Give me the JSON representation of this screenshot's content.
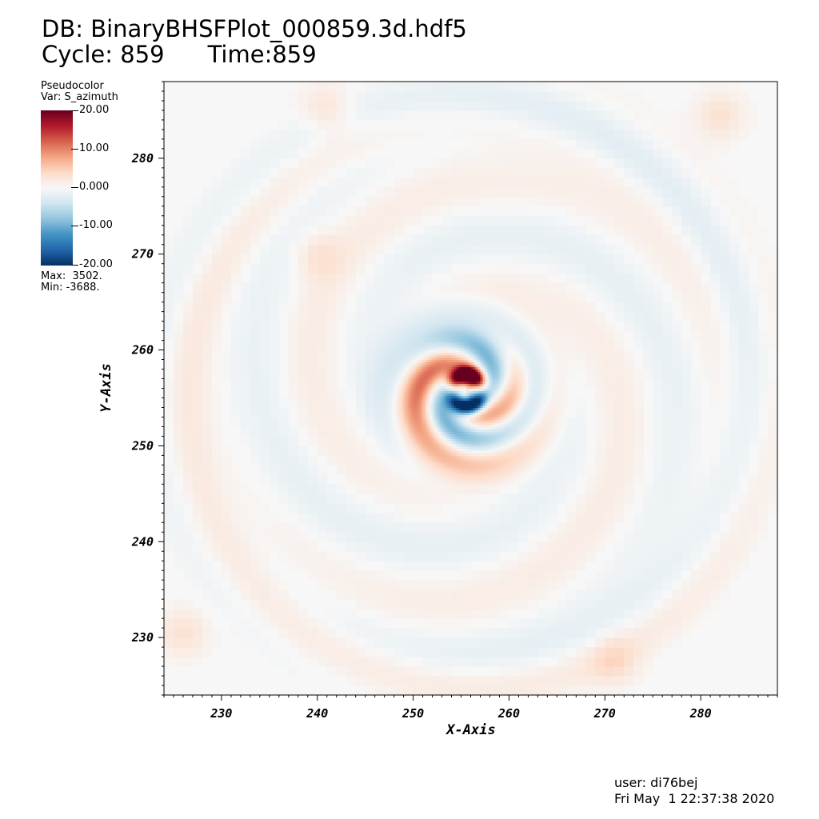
{
  "header": {
    "db_title": "DB: BinaryBHSFPlot_000859.3d.hdf5",
    "cycle_label": "Cycle: 859",
    "time_label": "Time:859"
  },
  "legend": {
    "plot_type": "Pseudocolor",
    "var_label": "Var: S_azimuth",
    "ticks": [
      "20.00",
      "10.00",
      "0.000",
      "-10.00",
      "-20.00"
    ],
    "max_label": "Max:  3502.",
    "min_label": "Min: -3688.",
    "colormap": [
      "#053061",
      "#2166ac",
      "#4393c3",
      "#92c5de",
      "#d1e5f0",
      "#f7f7f7",
      "#fddbc7",
      "#f4a582",
      "#d6604d",
      "#b2182b",
      "#67001f"
    ]
  },
  "footer": {
    "user": "user: di76bej",
    "timestamp": "Fri May  1 22:37:38 2020"
  },
  "chart_data": {
    "type": "heatmap",
    "title": "S_azimuth",
    "xlabel": "X-Axis",
    "ylabel": "Y-Axis",
    "xlim": [
      224,
      288
    ],
    "ylim": [
      224,
      288
    ],
    "xticks": [
      230,
      240,
      250,
      260,
      270,
      280
    ],
    "yticks": [
      230,
      240,
      250,
      260,
      270,
      280
    ],
    "color_range": [
      -20,
      20
    ],
    "data_max": 3502,
    "data_min": -3688,
    "center": [
      255.6,
      255.8
    ],
    "features": [
      {
        "name": "core-positive-lobe",
        "x": 255.6,
        "y": 257.5,
        "value": 20
      },
      {
        "name": "core-negative-lobe",
        "x": 256.3,
        "y": 254.3,
        "value": -20
      },
      {
        "name": "inner-ring-positive",
        "x": 254.5,
        "y": 258.5,
        "value": 8
      },
      {
        "name": "inner-ring-negative",
        "x": 257.5,
        "y": 256.0,
        "value": -8
      },
      {
        "name": "spiral-arm-positive-nw",
        "x": 251.5,
        "y": 261.0,
        "value": 6
      },
      {
        "name": "spiral-arm-negative-ne",
        "x": 259.0,
        "y": 262.0,
        "value": -4
      },
      {
        "name": "spiral-arm-positive-e",
        "x": 259.5,
        "y": 258.5,
        "value": 5
      },
      {
        "name": "spiral-arm-negative-s",
        "x": 252.5,
        "y": 248.5,
        "value": -5
      },
      {
        "name": "spiral-arm-positive-se",
        "x": 258.5,
        "y": 250.0,
        "value": 4
      },
      {
        "name": "outer-ring-positive",
        "x": 240.0,
        "y": 270.0,
        "value": 2.5
      },
      {
        "name": "outer-corner-positive-sw",
        "x": 226.0,
        "y": 230.5,
        "value": 3
      },
      {
        "name": "outer-corner-positive-se",
        "x": 271.0,
        "y": 227.5,
        "value": 3
      },
      {
        "name": "outer-corner-positive-ne",
        "x": 282.0,
        "y": 284.5,
        "value": 3
      },
      {
        "name": "outer-corner-positive-nw",
        "x": 241.0,
        "y": 285.0,
        "value": 3
      }
    ]
  }
}
